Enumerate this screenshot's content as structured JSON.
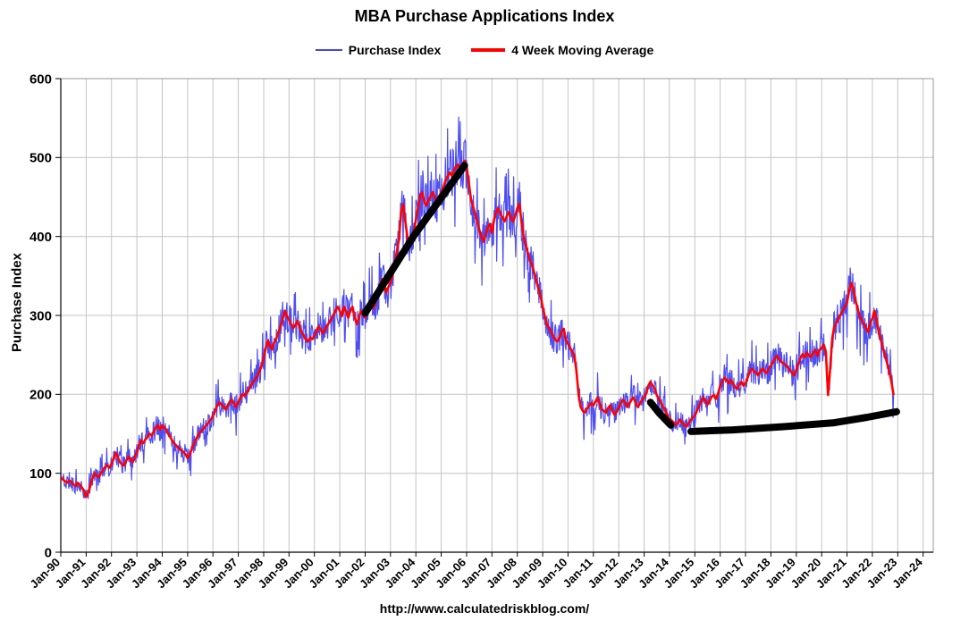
{
  "title": "MBA Purchase Applications Index",
  "footer_url": "http://www.calculatedriskblog.com/",
  "legend": [
    {
      "label": "Purchase Index",
      "color": "#4444ee"
    },
    {
      "label": "4 Week Moving Average",
      "color": "#ff0000"
    }
  ],
  "chart_data": {
    "type": "line",
    "title": "MBA Purchase Applications Index",
    "xlabel": "",
    "ylabel": "Purchase Index",
    "ylim": [
      0,
      600
    ],
    "yticks": [
      0,
      100,
      200,
      300,
      400,
      500,
      600
    ],
    "xlim": [
      1990,
      2024.4
    ],
    "grid": true,
    "grid_color": "#c4c4c4",
    "legend_position": "top",
    "x_start_year": 1990,
    "x_step_months": 1,
    "xtick_years": [
      1990,
      1991,
      1992,
      1993,
      1994,
      1995,
      1996,
      1997,
      1998,
      1999,
      2000,
      2001,
      2002,
      2003,
      2004,
      2005,
      2006,
      2007,
      2008,
      2009,
      2010,
      2011,
      2012,
      2013,
      2014,
      2015,
      2016,
      2017,
      2018,
      2019,
      2020,
      2021,
      2022,
      2023,
      2024
    ],
    "xtick_labels": [
      "Jan-90",
      "Jan-91",
      "Jan-92",
      "Jan-93",
      "Jan-94",
      "Jan-95",
      "Jan-96",
      "Jan-97",
      "Jan-98",
      "Jan-99",
      "Jan-00",
      "Jan-01",
      "Jan-02",
      "Jan-03",
      "Jan-04",
      "Jan-05",
      "Jan-06",
      "Jan-07",
      "Jan-08",
      "Jan-09",
      "Jan-10",
      "Jan-11",
      "Jan-12",
      "Jan-13",
      "Jan-14",
      "Jan-15",
      "Jan-16",
      "Jan-17",
      "Jan-18",
      "Jan-19",
      "Jan-20",
      "Jan-21",
      "Jan-22",
      "Jan-23",
      "Jan-24"
    ],
    "series": [
      {
        "name": "Purchase Index",
        "color": "#4444ee",
        "width": 1.2,
        "derived": "weekly_noise_of_moving_average",
        "noise_seed": 11,
        "noise_base": 6,
        "noise_scale": 0.055
      },
      {
        "name": "4 Week Moving Average",
        "color": "#ff0000",
        "width": 2.6,
        "values": [
          95,
          92,
          90,
          88,
          91,
          89,
          86,
          84,
          88,
          85,
          82,
          78,
          70,
          76,
          84,
          94,
          100,
          97,
          95,
          100,
          105,
          108,
          110,
          107,
          112,
          118,
          126,
          120,
          114,
          111,
          110,
          116,
          121,
          118,
          114,
          120,
          126,
          136,
          141,
          138,
          143,
          146,
          150,
          148,
          153,
          158,
          161,
          155,
          161,
          158,
          154,
          149,
          145,
          140,
          137,
          134,
          131,
          129,
          127,
          124,
          119,
          124,
          131,
          138,
          143,
          148,
          152,
          155,
          158,
          161,
          165,
          168,
          173,
          179,
          186,
          190,
          187,
          184,
          181,
          186,
          191,
          193,
          188,
          184,
          190,
          196,
          200,
          198,
          203,
          206,
          211,
          216,
          219,
          223,
          229,
          236,
          246,
          259,
          268,
          261,
          257,
          266,
          271,
          279,
          286,
          296,
          306,
          299,
          294,
          289,
          284,
          288,
          293,
          285,
          279,
          274,
          269,
          267,
          272,
          270,
          274,
          280,
          286,
          282,
          277,
          282,
          287,
          291,
          296,
          301,
          306,
          311,
          306,
          299,
          311,
          305,
          297,
          306,
          311,
          299,
          289,
          296,
          306,
          302,
          297,
          306,
          316,
          321,
          309,
          318,
          326,
          336,
          346,
          339,
          329,
          336,
          341,
          351,
          366,
          381,
          396,
          431,
          441,
          419,
          399,
          389,
          396,
          406,
          421,
          436,
          451,
          456,
          444,
          439,
          446,
          451,
          456,
          449,
          444,
          451,
          456,
          461,
          471,
          476,
          481,
          477,
          483,
          489,
          491,
          484,
          491,
          496,
          489,
          469,
          449,
          439,
          429,
          419,
          409,
          399,
          394,
          401,
          411,
          416,
          404,
          421,
          431,
          436,
          429,
          424,
          419,
          426,
          431,
          424,
          419,
          426,
          436,
          441,
          419,
          399,
          389,
          379,
          369,
          364,
          354,
          344,
          334,
          324,
          311,
          299,
          289,
          284,
          279,
          274,
          269,
          267,
          272,
          279,
          283,
          269,
          264,
          259,
          254,
          249,
          229,
          199,
          184,
          179,
          177,
          182,
          186,
          189,
          186,
          191,
          196,
          188,
          181,
          179,
          177,
          183,
          186,
          179,
          174,
          178,
          183,
          189,
          193,
          190,
          184,
          188,
          193,
          196,
          189,
          184,
          188,
          193,
          196,
          201,
          211,
          216,
          211,
          207,
          199,
          194,
          189,
          184,
          179,
          174,
          169,
          167,
          164,
          161,
          164,
          168,
          164,
          161,
          159,
          163,
          167,
          171,
          173,
          179,
          186,
          191,
          196,
          192,
          187,
          192,
          197,
          199,
          194,
          201,
          211,
          216,
          221,
          218,
          214,
          218,
          214,
          209,
          207,
          212,
          216,
          211,
          214,
          221,
          229,
          233,
          229,
          227,
          224,
          229,
          233,
          229,
          227,
          233,
          236,
          241,
          246,
          249,
          244,
          241,
          239,
          237,
          234,
          231,
          227,
          224,
          231,
          239,
          246,
          251,
          247,
          253,
          249,
          247,
          253,
          256,
          249,
          256,
          259,
          263,
          254,
          199,
          231,
          271,
          286,
          291,
          296,
          301,
          306,
          311,
          316,
          331,
          341,
          334,
          319,
          309,
          299,
          294,
          289,
          284,
          279,
          291,
          296,
          306,
          294,
          279,
          269,
          259,
          249,
          239,
          229,
          216,
          199
        ]
      }
    ],
    "annotations": [
      {
        "name": "black-marker-2002-2006-uptrend",
        "color": "#000000",
        "width": 8,
        "points": [
          [
            2002.0,
            303
          ],
          [
            2003.9,
            400
          ],
          [
            2005.92,
            490
          ]
        ]
      },
      {
        "name": "black-marker-2013-2014-decline",
        "color": "#000000",
        "width": 8,
        "points": [
          [
            2013.25,
            190
          ],
          [
            2013.6,
            176
          ],
          [
            2014.05,
            161
          ]
        ]
      },
      {
        "name": "black-marker-2015-2023-floor",
        "color": "#000000",
        "width": 8,
        "points": [
          [
            2014.85,
            153
          ],
          [
            2016.5,
            155
          ],
          [
            2018.5,
            159
          ],
          [
            2020.5,
            164
          ],
          [
            2021.8,
            171
          ],
          [
            2022.95,
            178
          ]
        ]
      }
    ]
  }
}
